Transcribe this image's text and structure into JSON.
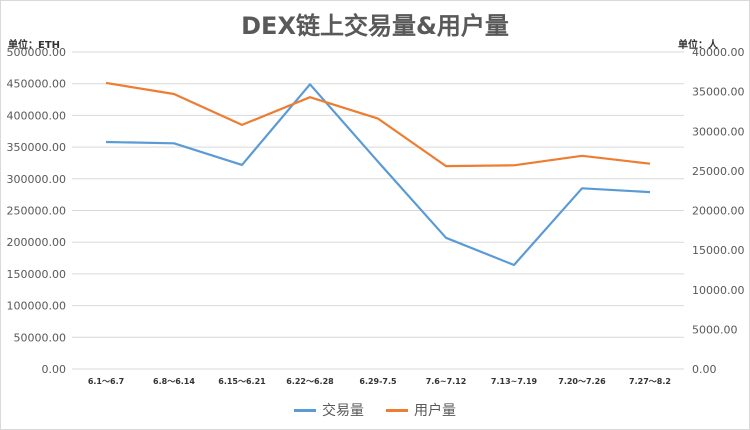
{
  "chart_data": {
    "type": "line",
    "title": "DEX链上交易量&用户量",
    "ylabel_left": "单位：ETH",
    "ylabel_right": "单位：人",
    "categories": [
      "6.1～6.7",
      "6.8～6.14",
      "6.15～6.21",
      "6.22～6.28",
      "6.29-7.5",
      "7.6~7.12",
      "7.13~7.19",
      "7.20～7.26",
      "7.27～8.2"
    ],
    "y_left_ticks": [
      "0.00",
      "50000.00",
      "100000.00",
      "150000.00",
      "200000.00",
      "250000.00",
      "300000.00",
      "350000.00",
      "400000.00",
      "450000.00",
      "500000.00"
    ],
    "y_right_ticks": [
      "0.00",
      "5000.00",
      "10000.00",
      "15000.00",
      "20000.00",
      "25000.00",
      "30000.00",
      "35000.00",
      "40000.00"
    ],
    "ylim_left": [
      0,
      500000
    ],
    "ylim_right": [
      0,
      40000
    ],
    "grid": true,
    "legend_position": "bottom",
    "series": [
      {
        "name": "交易量",
        "axis": "left",
        "color": "#5b9bd5",
        "values": [
          358000,
          356000,
          322000,
          449000,
          327000,
          207000,
          164000,
          285000,
          279000
        ]
      },
      {
        "name": "用户量",
        "axis": "right",
        "color": "#ed7d31",
        "values": [
          36100,
          34700,
          30800,
          34300,
          31600,
          25600,
          25700,
          26900,
          25900
        ]
      }
    ]
  }
}
